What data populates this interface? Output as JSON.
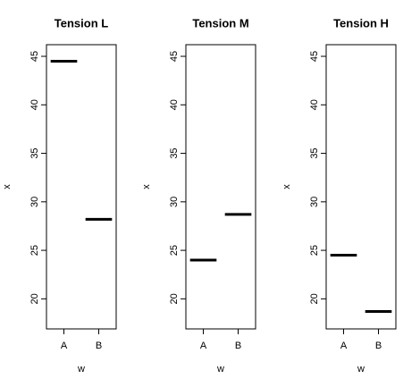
{
  "chart_data": [
    {
      "type": "dot",
      "title": "Tension L",
      "xlabel": "w",
      "ylabel": "x",
      "categories": [
        "A",
        "B"
      ],
      "values": [
        44.5,
        28.2
      ],
      "color": "#000000",
      "ylim": [
        16.9,
        46.2
      ],
      "yticks": [
        20,
        25,
        30,
        35,
        40,
        45
      ]
    },
    {
      "type": "dot",
      "title": "Tension M",
      "xlabel": "w",
      "ylabel": "x",
      "categories": [
        "A",
        "B"
      ],
      "values": [
        24.0,
        28.7
      ],
      "color": "#000000",
      "ylim": [
        16.9,
        46.2
      ],
      "yticks": [
        20,
        25,
        30,
        35,
        40,
        45
      ]
    },
    {
      "type": "dot",
      "title": "Tension H",
      "xlabel": "w",
      "ylabel": "x",
      "categories": [
        "A",
        "B"
      ],
      "values": [
        24.5,
        18.7
      ],
      "color": "#000000",
      "ylim": [
        16.9,
        46.2
      ],
      "yticks": [
        20,
        25,
        30,
        35,
        40,
        45
      ]
    }
  ]
}
